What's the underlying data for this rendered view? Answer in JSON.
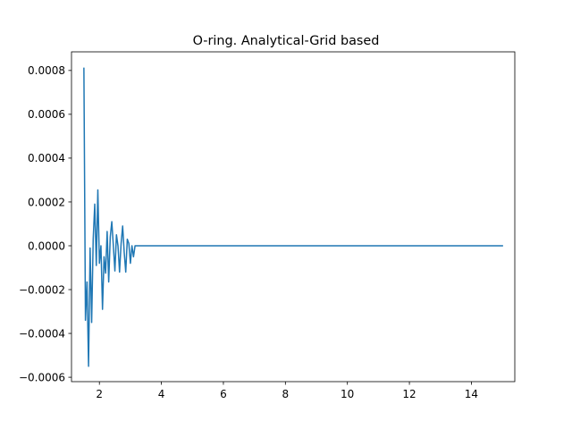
{
  "chart_data": {
    "type": "line",
    "title": "O-ring. Analytical-Grid based",
    "xlabel": "",
    "ylabel": "",
    "xlim": [
      1.1,
      15.4
    ],
    "ylim": [
      -0.00062,
      0.000885
    ],
    "x_ticks": [
      2,
      4,
      6,
      8,
      10,
      12,
      14
    ],
    "x_tick_labels": [
      "2",
      "4",
      "6",
      "8",
      "10",
      "12",
      "14"
    ],
    "y_ticks": [
      -0.0006,
      -0.0004,
      -0.0002,
      0.0,
      0.0002,
      0.0004,
      0.0006,
      0.0008
    ],
    "y_tick_labels": [
      "−0.0006",
      "−0.0004",
      "−0.0002",
      "0.0000",
      "0.0002",
      "0.0004",
      "0.0006",
      "0.0008"
    ],
    "grid": false,
    "line_color": "#1f77b4",
    "series": [
      {
        "x": [
          1.5,
          1.55,
          1.6,
          1.65,
          1.7,
          1.75,
          1.8,
          1.85,
          1.9,
          1.95,
          2.0,
          2.05,
          2.1,
          2.15,
          2.2,
          2.25,
          2.3,
          2.35,
          2.4,
          2.45,
          2.5,
          2.55,
          2.6,
          2.65,
          2.7,
          2.75,
          2.8,
          2.85,
          2.9,
          2.95,
          3.0,
          3.05,
          3.1,
          3.15,
          3.2,
          3.25,
          15.0
        ],
        "y": [
          0.00081,
          -0.00034,
          -0.000165,
          -0.00055,
          -1e-05,
          -0.00035,
          3e-05,
          0.00019,
          -9e-05,
          0.000255,
          -8e-05,
          0.0,
          -0.00029,
          -5e-05,
          -0.000125,
          6.5e-05,
          -0.000165,
          4e-05,
          0.00011,
          0.0,
          -0.000115,
          5e-05,
          0.0,
          -0.00012,
          1e-05,
          9e-05,
          -3e-05,
          -0.00012,
          3e-05,
          1e-05,
          -8e-05,
          0.0,
          -5e-05,
          0.0,
          0.0,
          0.0,
          0.0
        ]
      }
    ]
  }
}
